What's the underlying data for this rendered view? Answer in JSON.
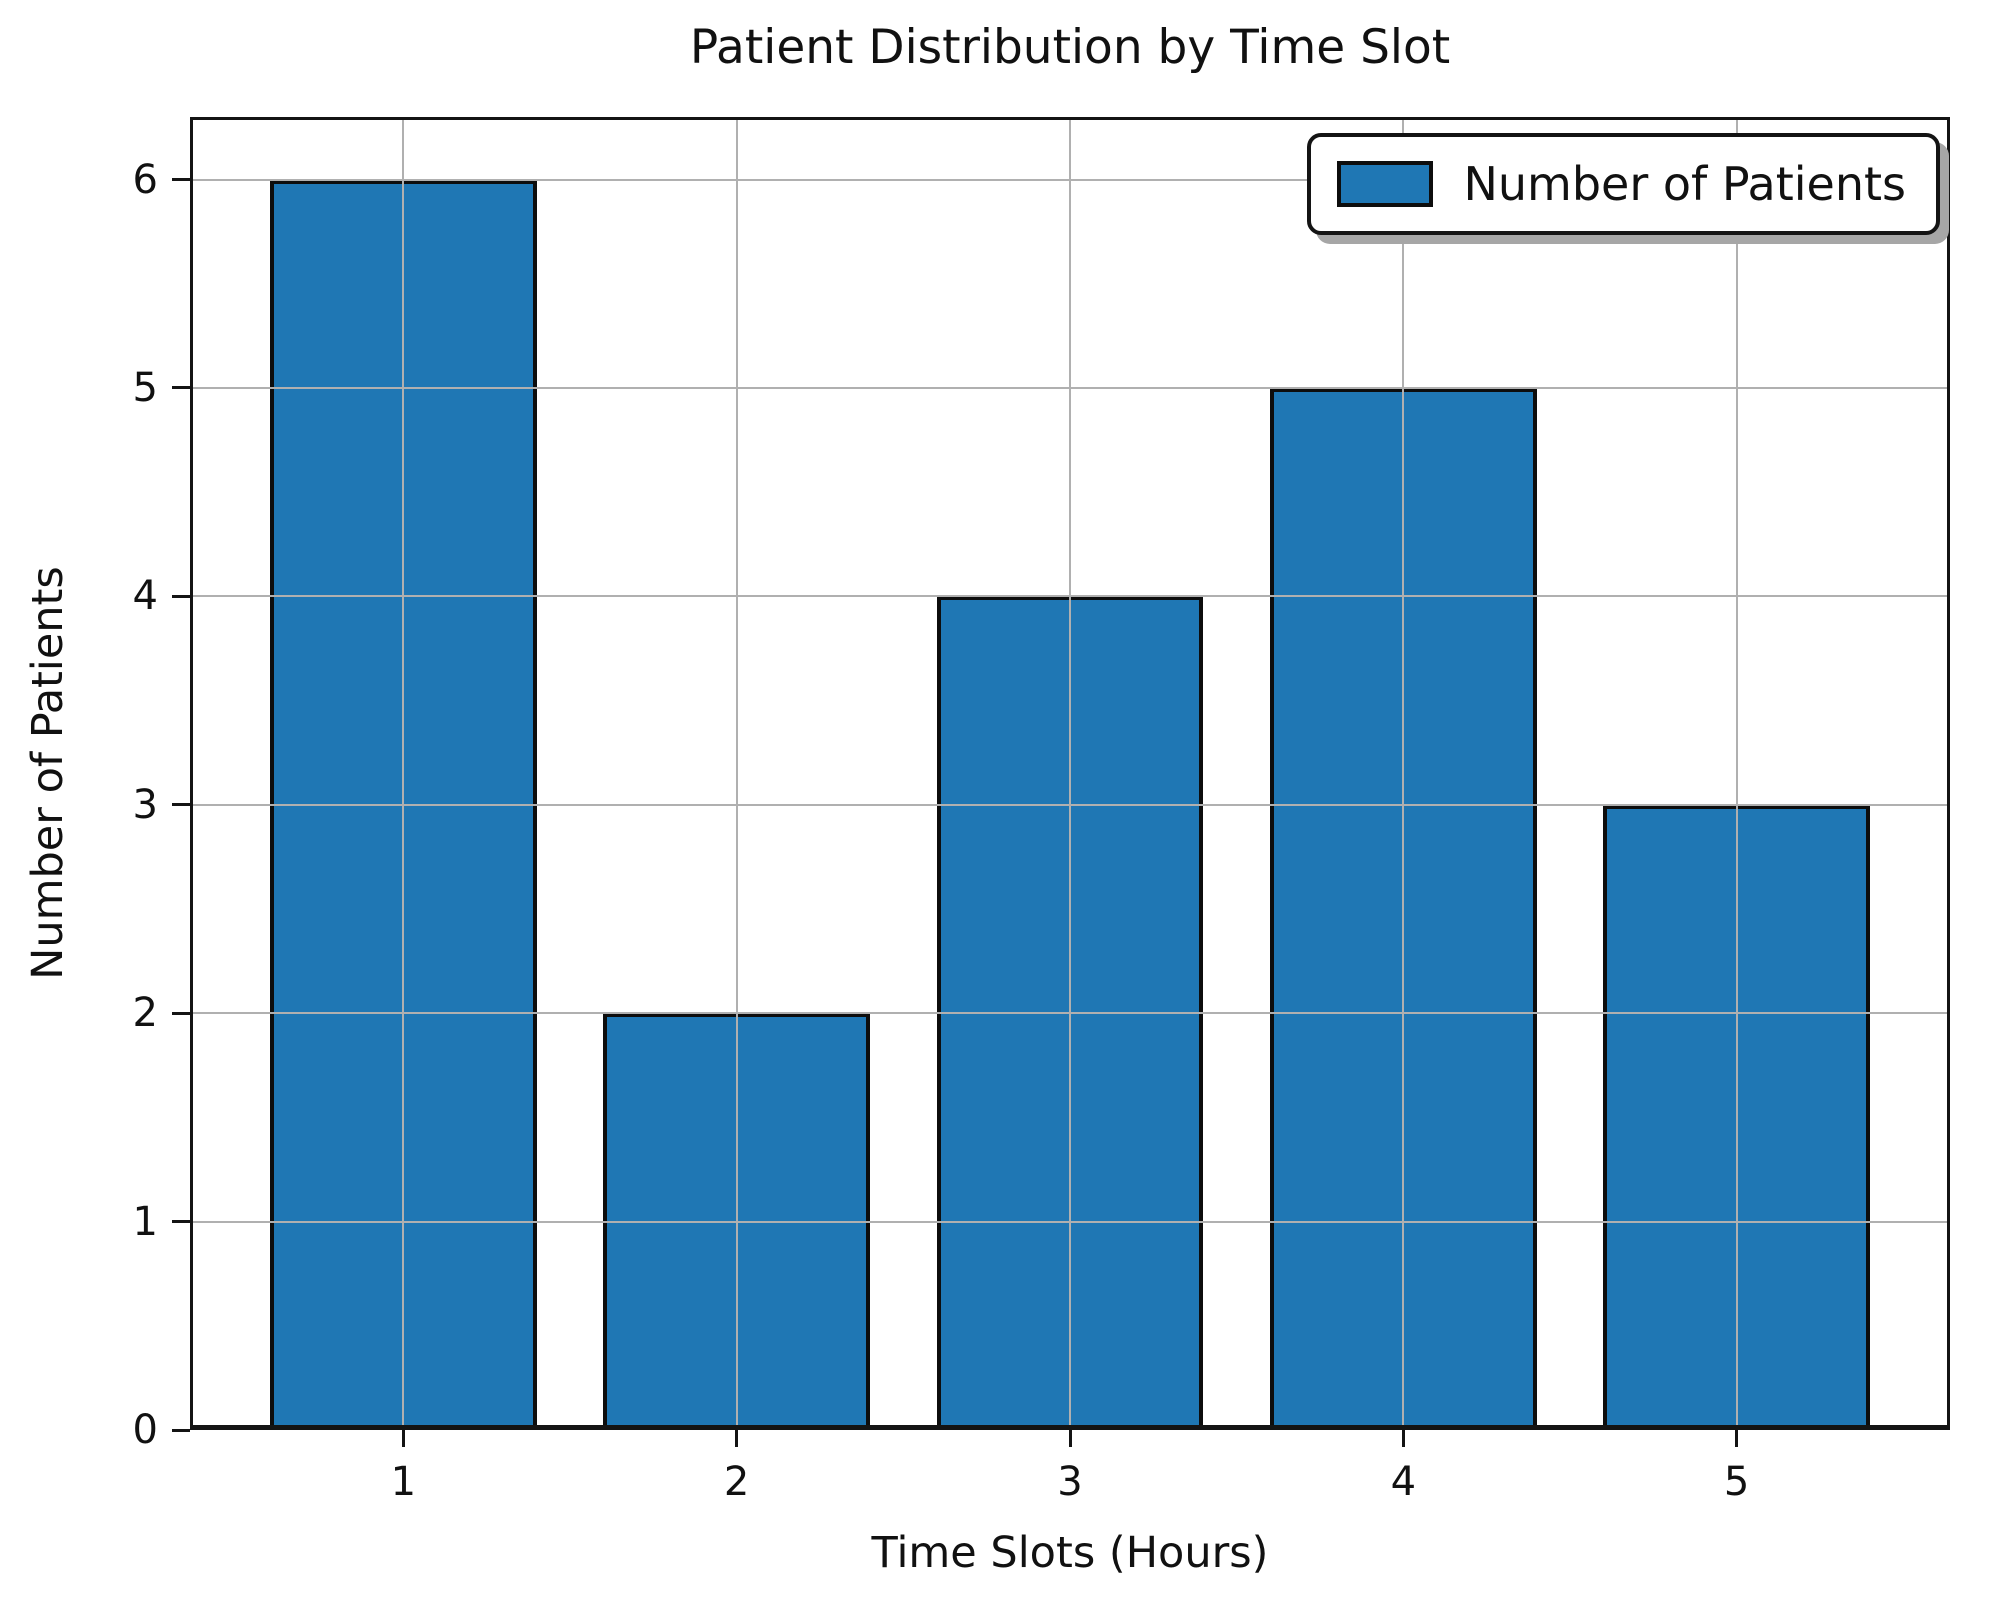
{
  "chart_data": {
    "type": "bar",
    "title": "Patient Distribution by Time Slot",
    "xlabel": "Time Slots (Hours)",
    "ylabel": "Number of Patients",
    "categories": [
      1,
      2,
      3,
      4,
      5
    ],
    "values": [
      6,
      2,
      4,
      5,
      3
    ],
    "series_name": "Number of Patients",
    "legend_label": "Number of Patients",
    "legend_position": "upper right",
    "xticks": [
      "1",
      "2",
      "3",
      "4",
      "5"
    ],
    "yticks": [
      "0",
      "1",
      "2",
      "3",
      "4",
      "5",
      "6"
    ],
    "xlim": [
      0.36,
      5.64
    ],
    "ylim": [
      0,
      6.3
    ],
    "bar_width": 0.8,
    "bar_color": "#1f77b4",
    "bar_edge_color": "#000000",
    "grid": true,
    "grid_color": "#b0b0b0"
  }
}
